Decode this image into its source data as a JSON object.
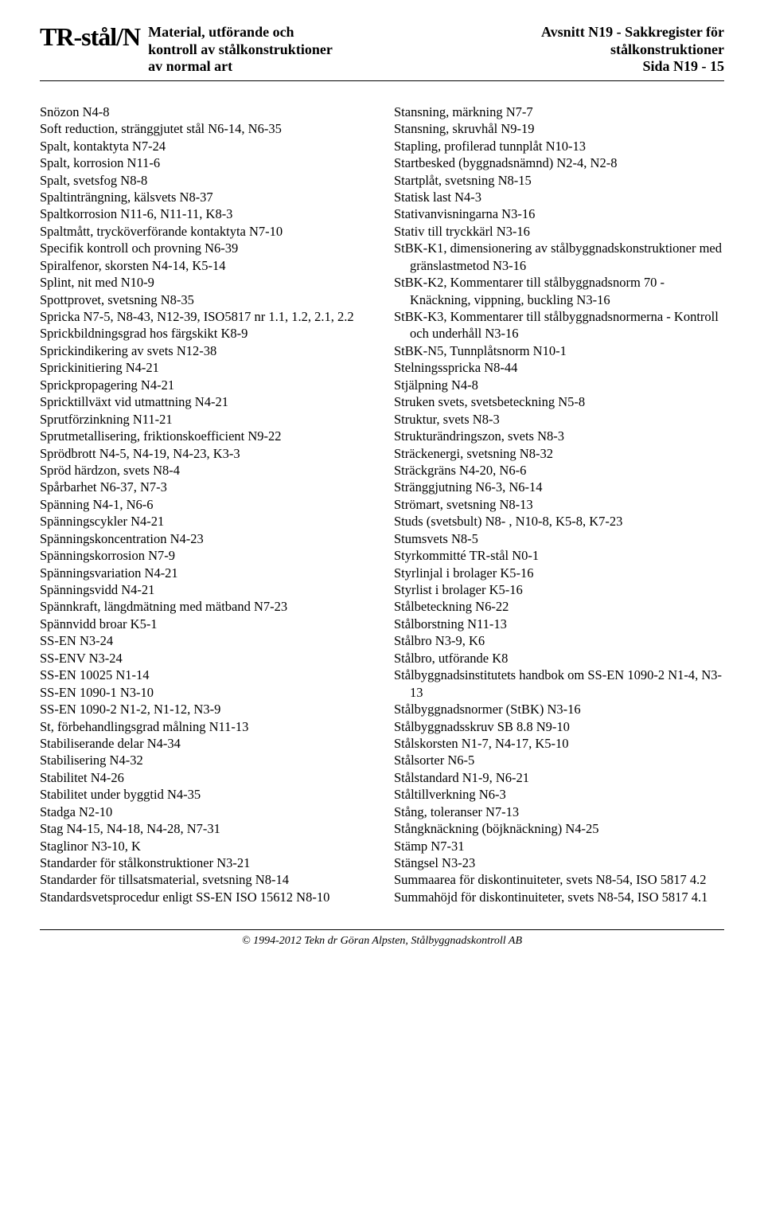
{
  "header": {
    "logo": "TR-stål/N",
    "left_line1": "Material, utförande och",
    "left_line2": "kontroll av stålkonstruktioner",
    "left_line3": "av normal art",
    "right_line1": "Avsnitt N19 - Sakkregister för",
    "right_line2": "stålkonstruktioner",
    "right_line3": "Sida N19 - 15"
  },
  "left_col": [
    "Snözon  N4-8",
    "Soft reduction, stränggjutet stål  N6-14,  N6-35",
    "Spalt, kontaktyta  N7-24",
    "Spalt, korrosion  N11-6",
    "Spalt, svetsfog  N8-8",
    "Spaltinträngning, kälsvets  N8-37",
    "Spaltkorrosion  N11-6,  N11-11,  K8-3",
    "Spaltmått, trycköverförande kontaktyta  N7-10",
    "Specifik kontroll och provning  N6-39",
    "Spiralfenor, skorsten  N4-14,  K5-14",
    "Splint, nit med  N10-9",
    "Spottprovet, svetsning  N8-35",
    "Spricka  N7-5,  N8-43,  N12-39, ISO5817 nr 1.1, 1.2,  2.1,  2.2",
    "Sprickbildningsgrad hos färgskikt  K8-9",
    "Sprickindikering av svets  N12-38",
    "Sprickinitiering  N4-21",
    "Sprickpropagering  N4-21",
    "Spricktillväxt vid utmattning  N4-21",
    "Sprutförzinkning  N11-21",
    "Sprutmetallisering, friktionskoefficient  N9-22",
    "Sprödbrott  N4-5,  N4-19,  N4-23,  K3-3",
    "Spröd härdzon, svets  N8-4",
    "Spårbarhet  N6-37,  N7-3",
    "Spänning  N4-1,  N6-6",
    "Spänningscykler  N4-21",
    "Spänningskoncentration  N4-23",
    "Spänningskorrosion  N7-9",
    "Spänningsvariation  N4-21",
    "Spänningsvidd  N4-21",
    "Spännkraft, längdmätning med mätband  N7-23",
    "Spännvidd broar  K5-1",
    "SS-EN  N3-24",
    "SS-ENV  N3-24",
    "SS-EN 10025  N1-14",
    "SS-EN 1090-1  N3-10",
    "SS-EN 1090-2  N1-2,  N1-12,  N3-9",
    "St, förbehandlingsgrad målning  N11-13",
    "Stabiliserande delar  N4-34",
    "Stabilisering  N4-32",
    "Stabilitet  N4-26",
    "Stabilitet under byggtid  N4-35",
    "Stadga  N2-10",
    "Stag  N4-15,  N4-18,  N4-28,  N7-31",
    "Staglinor  N3-10,  K",
    "Standarder för stålkonstruktioner  N3-21",
    "Standarder för tillsatsmaterial, svetsning  N8-14",
    "Standardsvetsprocedur enligt SS-EN ISO 15612  N8-10"
  ],
  "right_col": [
    "Stansning, märkning  N7-7",
    "Stansning, skruvhål  N9-19",
    "Stapling, profilerad tunnplåt  N10-13",
    "Startbesked (byggnadsnämnd)  N2-4,  N2-8",
    "Startplåt, svetsning  N8-15",
    "Statisk last  N4-3",
    "Stativanvisningarna  N3-16",
    "Stativ till tryckkärl  N3-16",
    "StBK-K1, dimensionering av stålbyggnads­konstruktioner med gränslastmetod  N3-16",
    "StBK-K2, Kommentarer till stålbyggnadsnorm 70 - Knäckning, vippning, buckling N3-16",
    "StBK-K3, Kommentarer till stålbyggnadsnormerna - Kontroll och underhåll  N3-16",
    "StBK-N5, Tunnplåtsnorm  N10-1",
    "Stelningsspricka  N8-44",
    "Stjälpning  N4-8",
    "Struken svets, svetsbeteckning  N5-8",
    "Struktur, svets  N8-3",
    "Strukturändringszon, svets  N8-3",
    "Sträckenergi, svetsning  N8-32",
    "Sträckgräns  N4-20,  N6-6",
    "Stränggjutning  N6-3,  N6-14",
    "Strömart, svetsning  N8-13",
    "Studs (svetsbult)  N8- ,  N10-8,  K5-8,  K7-23",
    "Stumsvets  N8-5",
    "Styrkommitté TR-stål  N0-1",
    "Styrlinjal i brolager  K5-16",
    "Styrlist i brolager  K5-16",
    "Stålbeteckning  N6-22",
    "Stålborstning  N11-13",
    "Stålbro  N3-9,  K6",
    "Stålbro, utförande  K8",
    "Stålbyggnadsinstitutets handbok om SS-EN 1090-2  N1-4,  N3-13",
    "Stålbyggnadsnormer (StBK)  N3-16",
    "Stålbyggnadsskruv SB 8.8  N9-10",
    "Stålskorsten  N1-7,  N4-17,  K5-10",
    "Stålsorter  N6-5",
    "Stålstandard  N1-9,  N6-21",
    "Ståltillverkning  N6-3",
    "Stång, toleranser  N7-13",
    "Stångknäckning (böjknäckning)  N4-25",
    "Stämp  N7-31",
    "Stängsel  N3-23",
    "Summaarea för diskontinuiteter, svets  N8-54, ISO 5817  4.2",
    "Summahöjd för diskontinuiteter, svets  N8-54, ISO 5817  4.1"
  ],
  "footer": "©  1994-2012 Tekn dr Göran Alpsten, Stålbyggnadskontroll AB"
}
